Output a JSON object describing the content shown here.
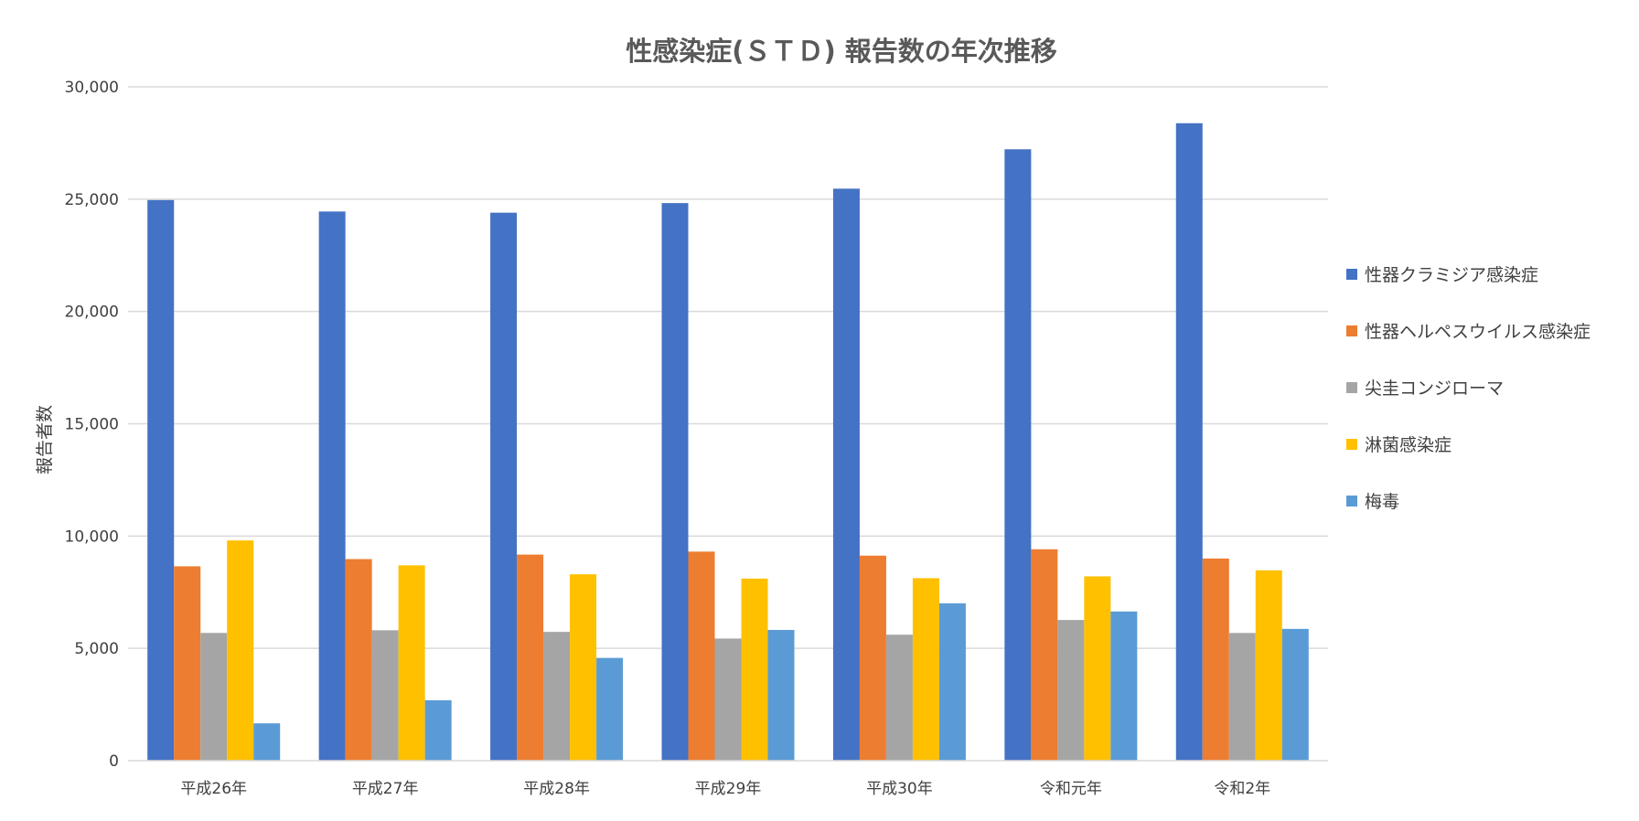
{
  "chart_data": {
    "type": "bar",
    "title": "性感染症(ＳＴＤ) 報告数の年次推移",
    "xlabel": "",
    "ylabel": "報告者数",
    "ylim": [
      0,
      30000
    ],
    "yticks": [
      "0",
      "5,000",
      "10,000",
      "15,000",
      "20,000",
      "25,000",
      "30,000"
    ],
    "grid": true,
    "legend_position": "right",
    "categories": [
      "平成26年",
      "平成27年",
      "平成28年",
      "平成29年",
      "平成30年",
      "令和元年",
      "令和2年"
    ],
    "series": [
      {
        "name": "性器クラミジア感染症",
        "color": "#4472C4",
        "values": [
          24960,
          24450,
          24397,
          24825,
          25467,
          27221,
          28381
        ]
      },
      {
        "name": "性器ヘルペスウイルス感染症",
        "color": "#ED7D31",
        "values": [
          8653,
          8974,
          9175,
          9308,
          9128,
          9413,
          9000
        ]
      },
      {
        "name": "尖圭コンジローマ",
        "color": "#A5A5A5",
        "values": [
          5687,
          5806,
          5734,
          5437,
          5609,
          6263,
          5685
        ]
      },
      {
        "name": "淋菌感染症",
        "color": "#FFC000",
        "values": [
          9805,
          8698,
          8298,
          8107,
          8125,
          8205,
          8474
        ]
      },
      {
        "name": "梅毒",
        "color": "#5B9BD5",
        "values": [
          1661,
          2690,
          4575,
          5820,
          7007,
          6642,
          5867
        ]
      }
    ]
  }
}
